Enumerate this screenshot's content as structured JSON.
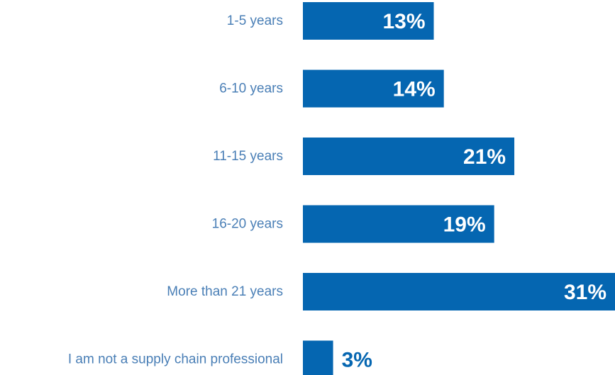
{
  "chart_data": {
    "type": "bar",
    "orientation": "horizontal",
    "categories": [
      "1-5 years",
      "6-10 years",
      "11-15 years",
      "16-20 years",
      "More than 21 years",
      "I am not a supply chain professional"
    ],
    "values": [
      13,
      14,
      21,
      19,
      31,
      3
    ],
    "value_labels": [
      "13%",
      "14%",
      "21%",
      "19%",
      "31%",
      "3%"
    ],
    "unit": "%",
    "xlim": [
      0,
      31
    ],
    "grid": false,
    "legend": "none"
  },
  "colors": {
    "bar": "#0566b1",
    "category_label": "#4a7fb6",
    "value_label_inside": "#ffffff",
    "value_label_outside": "#0566b1"
  }
}
